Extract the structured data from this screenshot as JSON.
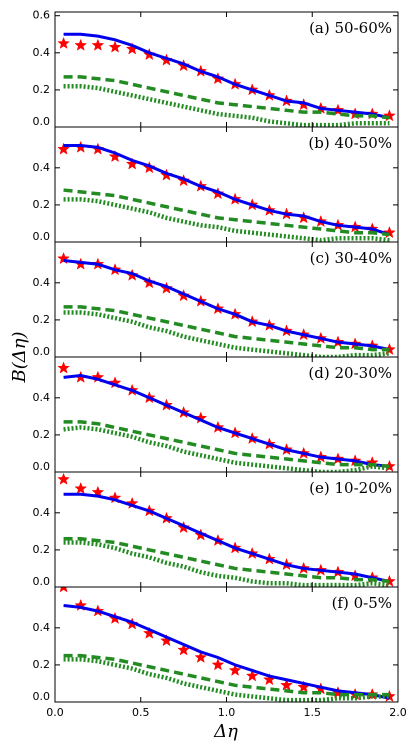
{
  "ylabel": "B(Δη)",
  "xlabel": "Δη",
  "chart_data": [
    {
      "type": "line",
      "title": "(a) 50-60%",
      "x": [
        0.05,
        0.15,
        0.25,
        0.35,
        0.45,
        0.55,
        0.65,
        0.75,
        0.85,
        0.95,
        1.05,
        1.15,
        1.25,
        1.35,
        1.45,
        1.55,
        1.65,
        1.75,
        1.85,
        1.95
      ],
      "xlim": [
        0,
        2.0
      ],
      "ylim": [
        0,
        0.62
      ],
      "yticks": [
        {
          "value": 0,
          "label": "0.0"
        },
        0.2,
        0.4,
        0.6
      ],
      "series": [
        {
          "style": "stars",
          "color": "#ff0000",
          "values": [
            0.45,
            0.44,
            0.44,
            0.43,
            0.42,
            0.39,
            0.36,
            0.33,
            0.3,
            0.26,
            0.23,
            0.2,
            0.17,
            0.14,
            0.12,
            0.1,
            0.09,
            0.07,
            0.07,
            0.06
          ]
        },
        {
          "style": "solid",
          "color": "#0000ee",
          "values": [
            0.5,
            0.5,
            0.49,
            0.47,
            0.44,
            0.4,
            0.37,
            0.34,
            0.3,
            0.27,
            0.23,
            0.2,
            0.17,
            0.14,
            0.13,
            0.1,
            0.09,
            0.08,
            0.07,
            0.05
          ]
        },
        {
          "style": "dashed",
          "color": "#228b22",
          "values": [
            0.27,
            0.27,
            0.26,
            0.25,
            0.23,
            0.21,
            0.19,
            0.17,
            0.15,
            0.13,
            0.12,
            0.11,
            0.1,
            0.09,
            0.08,
            0.08,
            0.07,
            0.06,
            0.06,
            0.05
          ]
        },
        {
          "style": "dotted",
          "color": "#228b22",
          "values": [
            0.22,
            0.22,
            0.21,
            0.19,
            0.17,
            0.15,
            0.13,
            0.11,
            0.09,
            0.07,
            0.06,
            0.05,
            0.03,
            0.02,
            0.01,
            0.01,
            0.01,
            0.02,
            0.02,
            0.02
          ]
        }
      ]
    },
    {
      "type": "line",
      "title": "(b) 40-50%",
      "x": [
        0.05,
        0.15,
        0.25,
        0.35,
        0.45,
        0.55,
        0.65,
        0.75,
        0.85,
        0.95,
        1.05,
        1.15,
        1.25,
        1.35,
        1.45,
        1.55,
        1.65,
        1.75,
        1.85,
        1.95
      ],
      "xlim": [
        0,
        2.0
      ],
      "ylim": [
        0,
        0.62
      ],
      "yticks": [
        {
          "value": 0,
          "label": "0.0"
        },
        0.2,
        0.4
      ],
      "series": [
        {
          "style": "stars",
          "color": "#ff0000",
          "values": [
            0.5,
            0.51,
            0.5,
            0.46,
            0.42,
            0.4,
            0.36,
            0.33,
            0.3,
            0.26,
            0.23,
            0.2,
            0.17,
            0.15,
            0.13,
            0.11,
            0.09,
            0.08,
            0.07,
            0.05
          ]
        },
        {
          "style": "solid",
          "color": "#0000ee",
          "values": [
            0.52,
            0.52,
            0.51,
            0.48,
            0.44,
            0.41,
            0.37,
            0.34,
            0.3,
            0.27,
            0.23,
            0.2,
            0.17,
            0.15,
            0.14,
            0.11,
            0.09,
            0.08,
            0.07,
            0.04
          ]
        },
        {
          "style": "dashed",
          "color": "#228b22",
          "values": [
            0.28,
            0.27,
            0.26,
            0.25,
            0.23,
            0.21,
            0.19,
            0.17,
            0.15,
            0.13,
            0.12,
            0.11,
            0.1,
            0.09,
            0.08,
            0.07,
            0.06,
            0.05,
            0.05,
            0.04
          ]
        },
        {
          "style": "dotted",
          "color": "#228b22",
          "values": [
            0.23,
            0.23,
            0.22,
            0.2,
            0.18,
            0.16,
            0.13,
            0.11,
            0.09,
            0.08,
            0.06,
            0.05,
            0.04,
            0.03,
            0.02,
            0.01,
            0.02,
            0.02,
            0.02,
            0.01
          ]
        }
      ]
    },
    {
      "type": "line",
      "title": "(c) 30-40%",
      "x": [
        0.05,
        0.15,
        0.25,
        0.35,
        0.45,
        0.55,
        0.65,
        0.75,
        0.85,
        0.95,
        1.05,
        1.15,
        1.25,
        1.35,
        1.45,
        1.55,
        1.65,
        1.75,
        1.85,
        1.95
      ],
      "xlim": [
        0,
        2.0
      ],
      "ylim": [
        0,
        0.62
      ],
      "yticks": [
        {
          "value": 0,
          "label": "0.0"
        },
        0.2,
        0.4
      ],
      "series": [
        {
          "style": "stars",
          "color": "#ff0000",
          "values": [
            0.53,
            0.5,
            0.5,
            0.47,
            0.44,
            0.4,
            0.37,
            0.33,
            0.3,
            0.26,
            0.23,
            0.19,
            0.17,
            0.14,
            0.12,
            0.1,
            0.08,
            0.07,
            0.06,
            0.04
          ]
        },
        {
          "style": "solid",
          "color": "#0000ee",
          "values": [
            0.52,
            0.51,
            0.5,
            0.47,
            0.45,
            0.41,
            0.38,
            0.34,
            0.3,
            0.26,
            0.23,
            0.19,
            0.17,
            0.14,
            0.12,
            0.1,
            0.08,
            0.07,
            0.06,
            0.04
          ]
        },
        {
          "style": "dashed",
          "color": "#228b22",
          "values": [
            0.27,
            0.27,
            0.26,
            0.25,
            0.23,
            0.21,
            0.19,
            0.17,
            0.15,
            0.13,
            0.11,
            0.1,
            0.09,
            0.08,
            0.07,
            0.06,
            0.05,
            0.05,
            0.04,
            0.04
          ]
        },
        {
          "style": "dotted",
          "color": "#228b22",
          "values": [
            0.24,
            0.24,
            0.23,
            0.21,
            0.19,
            0.16,
            0.14,
            0.11,
            0.09,
            0.07,
            0.05,
            0.04,
            0.03,
            0.02,
            0.01,
            0.0,
            0.0,
            0.01,
            0.01,
            0.02
          ]
        }
      ]
    },
    {
      "type": "line",
      "title": "(d) 20-30%",
      "x": [
        0.05,
        0.15,
        0.25,
        0.35,
        0.45,
        0.55,
        0.65,
        0.75,
        0.85,
        0.95,
        1.05,
        1.15,
        1.25,
        1.35,
        1.45,
        1.55,
        1.65,
        1.75,
        1.85,
        1.95
      ],
      "xlim": [
        0,
        2.0
      ],
      "ylim": [
        0,
        0.62
      ],
      "yticks": [
        {
          "value": 0,
          "label": "0.0"
        },
        0.2,
        0.4
      ],
      "series": [
        {
          "style": "stars",
          "color": "#ff0000",
          "values": [
            0.56,
            0.51,
            0.51,
            0.48,
            0.44,
            0.4,
            0.36,
            0.32,
            0.29,
            0.24,
            0.21,
            0.18,
            0.15,
            0.12,
            0.1,
            0.08,
            0.07,
            0.06,
            0.05,
            0.03
          ]
        },
        {
          "style": "solid",
          "color": "#0000ee",
          "values": [
            0.51,
            0.52,
            0.5,
            0.47,
            0.44,
            0.4,
            0.36,
            0.32,
            0.28,
            0.24,
            0.21,
            0.18,
            0.15,
            0.12,
            0.1,
            0.08,
            0.07,
            0.06,
            0.04,
            0.03
          ]
        },
        {
          "style": "dashed",
          "color": "#228b22",
          "values": [
            0.27,
            0.27,
            0.26,
            0.24,
            0.22,
            0.2,
            0.18,
            0.16,
            0.14,
            0.12,
            0.1,
            0.09,
            0.08,
            0.07,
            0.06,
            0.05,
            0.04,
            0.04,
            0.04,
            0.03
          ]
        },
        {
          "style": "dotted",
          "color": "#228b22",
          "values": [
            0.23,
            0.24,
            0.23,
            0.21,
            0.19,
            0.16,
            0.14,
            0.11,
            0.09,
            0.07,
            0.05,
            0.04,
            0.03,
            0.02,
            0.01,
            0.0,
            0.0,
            0.01,
            0.03,
            0.02
          ]
        }
      ]
    },
    {
      "type": "line",
      "title": "(e) 10-20%",
      "x": [
        0.05,
        0.15,
        0.25,
        0.35,
        0.45,
        0.55,
        0.65,
        0.75,
        0.85,
        0.95,
        1.05,
        1.15,
        1.25,
        1.35,
        1.45,
        1.55,
        1.65,
        1.75,
        1.85,
        1.95
      ],
      "xlim": [
        0,
        2.0
      ],
      "ylim": [
        0,
        0.62
      ],
      "yticks": [
        {
          "value": 0,
          "label": "0.0"
        },
        0.2,
        0.4
      ],
      "series": [
        {
          "style": "stars",
          "color": "#ff0000",
          "values": [
            0.58,
            0.53,
            0.51,
            0.48,
            0.45,
            0.41,
            0.37,
            0.32,
            0.28,
            0.25,
            0.21,
            0.18,
            0.15,
            0.12,
            0.1,
            0.09,
            0.08,
            0.06,
            0.05,
            0.03
          ]
        },
        {
          "style": "solid",
          "color": "#0000ee",
          "values": [
            0.5,
            0.5,
            0.49,
            0.47,
            0.44,
            0.41,
            0.37,
            0.33,
            0.29,
            0.25,
            0.21,
            0.18,
            0.15,
            0.12,
            0.1,
            0.09,
            0.08,
            0.07,
            0.05,
            0.03
          ]
        },
        {
          "style": "dashed",
          "color": "#228b22",
          "values": [
            0.26,
            0.26,
            0.25,
            0.24,
            0.22,
            0.2,
            0.18,
            0.16,
            0.14,
            0.12,
            0.1,
            0.09,
            0.08,
            0.07,
            0.06,
            0.05,
            0.05,
            0.04,
            0.04,
            0.03
          ]
        },
        {
          "style": "dotted",
          "color": "#228b22",
          "values": [
            0.24,
            0.24,
            0.23,
            0.21,
            0.18,
            0.16,
            0.13,
            0.11,
            0.08,
            0.06,
            0.05,
            0.03,
            0.02,
            0.02,
            0.01,
            0.01,
            0.01,
            0.01,
            0.02,
            0.01
          ]
        }
      ]
    },
    {
      "type": "line",
      "title": "(f) 0-5%",
      "x": [
        0.05,
        0.15,
        0.25,
        0.35,
        0.45,
        0.55,
        0.65,
        0.75,
        0.85,
        0.95,
        1.05,
        1.15,
        1.25,
        1.35,
        1.45,
        1.55,
        1.65,
        1.75,
        1.85,
        1.95
      ],
      "xlim": [
        0,
        2.0
      ],
      "ylim": [
        0,
        0.62
      ],
      "xticks": [
        {
          "value": 0,
          "label": "0.0"
        },
        0.5,
        {
          "value": 1,
          "label": "1.0"
        },
        1.5,
        {
          "value": 2,
          "label": "2.0"
        }
      ],
      "yticks": [
        {
          "value": 0,
          "label": "0.0"
        },
        0.2,
        0.4
      ],
      "series": [
        {
          "style": "stars",
          "color": "#ff0000",
          "values": [
            0.62,
            0.52,
            0.49,
            0.45,
            0.42,
            0.37,
            0.33,
            0.28,
            0.24,
            0.2,
            0.17,
            0.14,
            0.12,
            0.09,
            0.08,
            0.07,
            0.05,
            0.04,
            0.04,
            0.03
          ]
        },
        {
          "style": "solid",
          "color": "#0000ee",
          "values": [
            0.52,
            0.51,
            0.49,
            0.46,
            0.43,
            0.39,
            0.35,
            0.31,
            0.27,
            0.24,
            0.2,
            0.17,
            0.14,
            0.12,
            0.1,
            0.08,
            0.06,
            0.05,
            0.04,
            0.02
          ]
        },
        {
          "style": "dashed",
          "color": "#228b22",
          "values": [
            0.25,
            0.25,
            0.24,
            0.23,
            0.21,
            0.19,
            0.17,
            0.15,
            0.13,
            0.11,
            0.09,
            0.08,
            0.07,
            0.06,
            0.05,
            0.05,
            0.04,
            0.04,
            0.04,
            0.04
          ]
        },
        {
          "style": "dotted",
          "color": "#228b22",
          "values": [
            0.23,
            0.23,
            0.22,
            0.2,
            0.18,
            0.15,
            0.13,
            0.1,
            0.08,
            0.06,
            0.04,
            0.03,
            0.02,
            0.01,
            0.01,
            0.01,
            0.02,
            0.02,
            0.03,
            0.03
          ]
        }
      ]
    }
  ]
}
